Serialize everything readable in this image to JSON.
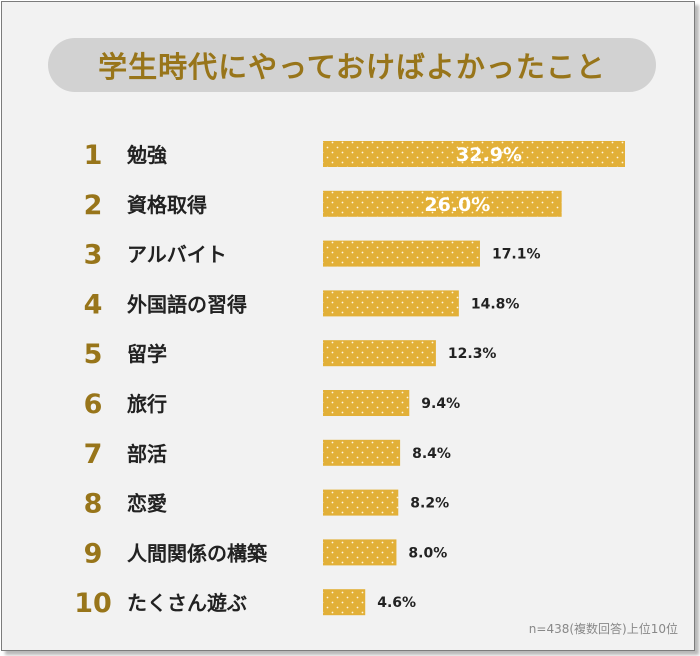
{
  "chart_data": {
    "type": "bar",
    "orientation": "horizontal",
    "title": "学生時代にやっておけばよかったこと",
    "ranks": [
      "1",
      "2",
      "3",
      "4",
      "5",
      "6",
      "7",
      "8",
      "9",
      "10"
    ],
    "categories": [
      "勉強",
      "資格取得",
      "アルバイト",
      "外国語の習得",
      "留学",
      "旅行",
      "部活",
      "恋愛",
      "人間関係の構築",
      "たくさん遊ぶ"
    ],
    "values": [
      32.9,
      26.0,
      17.1,
      14.8,
      12.3,
      9.4,
      8.4,
      8.2,
      8.0,
      4.6
    ],
    "value_labels": [
      "32.9%",
      "26.0%",
      "17.1%",
      "14.8%",
      "12.3%",
      "9.4%",
      "8.4%",
      "8.2%",
      "8.0%",
      "4.6%"
    ],
    "unit": "%",
    "xlim": [
      0,
      32.9
    ],
    "grid": false,
    "legend": "none",
    "footnote": "n=438(複数回答)上位10位"
  },
  "colors": {
    "bar": "#e2b038",
    "dots": "#fff6dc",
    "rank": "#98751a",
    "title": "#98751a",
    "label": "#222222",
    "inside_label": "#ffffff"
  }
}
